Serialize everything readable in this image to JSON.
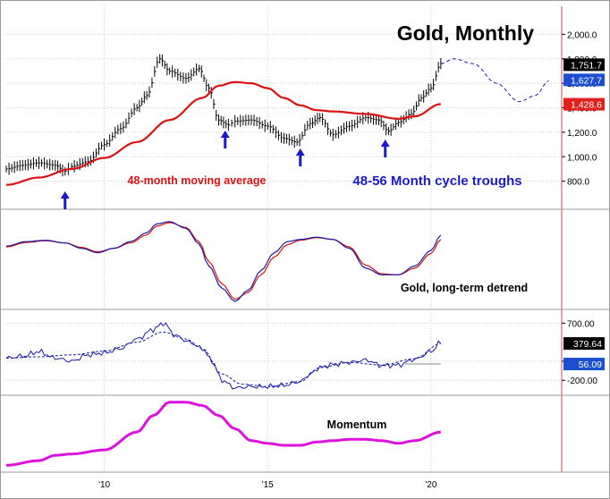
{
  "chart_data": [
    {
      "panel": "price",
      "type": "line",
      "title": "Gold, Monthly",
      "y_scale": "linear",
      "ylim": [
        600,
        2200
      ],
      "y_ticks": [
        800,
        1000,
        1200,
        1400,
        1600,
        1800,
        2000
      ],
      "y_tick_labels": [
        "800.0",
        "1,000.0",
        "1,200.0",
        "1,400.0",
        "1,600.0",
        "1,800.0",
        "2,000.0"
      ],
      "xlim": [
        2007.0,
        2024.0
      ],
      "x_ticks": [
        2010,
        2015,
        2020
      ],
      "x_tick_labels": [
        "'10",
        "'15",
        "'20"
      ],
      "series": [
        {
          "name": "",
          "style": "bars",
          "color": "#000000",
          "x": [
            2007.0,
            2007.5,
            2008.0,
            2008.5,
            2008.8,
            2009.0,
            2009.5,
            2010.0,
            2010.5,
            2011.0,
            2011.3,
            2011.7,
            2012.0,
            2012.5,
            2012.9,
            2013.2,
            2013.5,
            2013.8,
            2014.0,
            2014.5,
            2015.0,
            2015.5,
            2015.9,
            2016.3,
            2016.6,
            2017.0,
            2017.5,
            2018.0,
            2018.4,
            2018.7,
            2019.0,
            2019.4,
            2019.7,
            2020.0,
            2020.3
          ],
          "y": [
            900,
            930,
            950,
            930,
            880,
            920,
            960,
            1100,
            1230,
            1400,
            1500,
            1800,
            1700,
            1640,
            1720,
            1560,
            1300,
            1260,
            1290,
            1300,
            1250,
            1150,
            1120,
            1270,
            1320,
            1180,
            1250,
            1320,
            1300,
            1210,
            1280,
            1350,
            1480,
            1560,
            1760
          ]
        },
        {
          "name": "48-month moving average",
          "style": "line",
          "color": "#dd1111",
          "x": [
            2007.0,
            2008.0,
            2009.0,
            2010.0,
            2011.0,
            2012.0,
            2013.0,
            2013.5,
            2014.0,
            2014.5,
            2015.0,
            2015.5,
            2016.0,
            2016.5,
            2017.0,
            2018.0,
            2019.0,
            2019.5,
            2020.3
          ],
          "y": [
            770,
            830,
            900,
            990,
            1120,
            1300,
            1480,
            1580,
            1610,
            1600,
            1560,
            1480,
            1420,
            1380,
            1370,
            1350,
            1310,
            1330,
            1430
          ]
        },
        {
          "name": "",
          "style": "dashed",
          "color": "#1a1aa8",
          "x": [
            2020.3,
            2020.7,
            2021.3,
            2022.0,
            2022.7,
            2023.2,
            2023.6
          ],
          "y": [
            1760,
            1800,
            1760,
            1600,
            1450,
            1500,
            1620
          ]
        }
      ],
      "value_labels": [
        {
          "text": "1,751.7",
          "value": 1751.7,
          "color": "#000000"
        },
        {
          "text": "1,627.7",
          "value": 1627.7,
          "color": "#1c4fcf"
        },
        {
          "text": "1,428.6",
          "value": 1428.6,
          "color": "#e0201a"
        }
      ],
      "annotations": [
        {
          "text": "48-month moving average",
          "color": "#dd1111"
        },
        {
          "text": "48-56 Month cycle troughs",
          "color": "#1a1acc"
        }
      ],
      "arrows": [
        2008.8,
        2013.7,
        2016.0,
        2018.6
      ]
    },
    {
      "panel": "detrend",
      "type": "line",
      "title": "Gold, long-term detrend",
      "ylim": [
        -1.3,
        0.8
      ],
      "series": [
        {
          "name": "",
          "color": "#1a1aa8",
          "x": [
            2007.0,
            2007.6,
            2008.2,
            2008.8,
            2009.3,
            2009.8,
            2010.3,
            2010.8,
            2011.3,
            2011.6,
            2012.0,
            2012.5,
            2012.9,
            2013.2,
            2013.6,
            2014.0,
            2014.4,
            2014.8,
            2015.2,
            2015.6,
            2016.0,
            2016.5,
            2017.0,
            2017.5,
            2018.0,
            2018.5,
            2019.0,
            2019.5,
            2020.0,
            2020.3
          ],
          "y": [
            0.05,
            0.15,
            0.18,
            0.12,
            0.0,
            -0.1,
            0.0,
            0.15,
            0.35,
            0.55,
            0.6,
            0.45,
            0.1,
            -0.4,
            -0.9,
            -1.2,
            -0.95,
            -0.5,
            -0.1,
            0.15,
            0.2,
            0.25,
            0.2,
            0.0,
            -0.45,
            -0.6,
            -0.6,
            -0.4,
            -0.05,
            0.3
          ]
        },
        {
          "name": "",
          "color": "#dd1111",
          "x": [
            2007.0,
            2007.6,
            2008.2,
            2008.8,
            2009.3,
            2009.8,
            2010.3,
            2010.8,
            2011.3,
            2011.6,
            2012.0,
            2012.5,
            2012.9,
            2013.2,
            2013.6,
            2014.0,
            2014.4,
            2014.8,
            2015.2,
            2015.6,
            2016.0,
            2016.5,
            2017.0,
            2017.5,
            2018.0,
            2018.5,
            2019.0,
            2019.5,
            2020.0,
            2020.3
          ],
          "y": [
            0.03,
            0.13,
            0.17,
            0.12,
            0.02,
            -0.08,
            0.0,
            0.12,
            0.3,
            0.5,
            0.58,
            0.47,
            0.15,
            -0.3,
            -0.8,
            -1.15,
            -1.0,
            -0.6,
            -0.2,
            0.08,
            0.18,
            0.24,
            0.2,
            0.03,
            -0.38,
            -0.58,
            -0.6,
            -0.45,
            -0.12,
            0.2
          ]
        }
      ]
    },
    {
      "panel": "oscillator",
      "type": "line",
      "ylim": [
        -380,
        860
      ],
      "y_ticks": [
        700,
        100,
        -200
      ],
      "y_tick_labels": [
        "700.00",
        "100.00",
        "-200.00"
      ],
      "series": [
        {
          "name": "",
          "color": "#1a1aa8",
          "x": [
            2007.0,
            2007.5,
            2008.0,
            2008.5,
            2009.0,
            2009.5,
            2010.0,
            2010.5,
            2011.0,
            2011.5,
            2011.8,
            2012.2,
            2012.6,
            2013.0,
            2013.3,
            2013.6,
            2014.0,
            2014.5,
            2015.0,
            2015.5,
            2016.0,
            2016.3,
            2016.6,
            2017.0,
            2017.5,
            2018.0,
            2018.5,
            2019.0,
            2019.5,
            2020.0,
            2020.3
          ],
          "y": [
            150,
            180,
            250,
            150,
            100,
            200,
            230,
            300,
            450,
            600,
            700,
            500,
            400,
            300,
            100,
            -200,
            -320,
            -300,
            -300,
            -280,
            -220,
            -100,
            0,
            50,
            80,
            120,
            30,
            40,
            130,
            250,
            400
          ]
        },
        {
          "name": "",
          "color": "#1a1aa8",
          "style": "dashed",
          "x": [
            2007.0,
            2008.0,
            2009.0,
            2010.0,
            2011.0,
            2011.8,
            2012.5,
            2013.0,
            2013.6,
            2014.2,
            2015.0,
            2016.0,
            2016.6,
            2017.5,
            2018.5,
            2019.5,
            2020.3
          ],
          "y": [
            150,
            170,
            200,
            260,
            400,
            560,
            450,
            300,
            -100,
            -260,
            -300,
            -220,
            0,
            80,
            40,
            140,
            380
          ]
        }
      ],
      "value_labels": [
        {
          "text": "379.64",
          "value": 379.64,
          "color": "#000000"
        },
        {
          "text": "56.09",
          "value": 56.09,
          "color": "#1c4fcf"
        }
      ]
    },
    {
      "panel": "momentum",
      "type": "line",
      "title": "Momentum",
      "ylim": [
        0,
        1.05
      ],
      "series": [
        {
          "name": "",
          "color": "#dd11dd",
          "x": [
            2007.0,
            2008.0,
            2008.5,
            2009.0,
            2010.0,
            2011.0,
            2011.5,
            2012.0,
            2012.5,
            2013.0,
            2013.5,
            2014.0,
            2014.5,
            2015.0,
            2015.5,
            2016.0,
            2016.5,
            2017.0,
            2017.5,
            2018.0,
            2018.5,
            2019.0,
            2019.5,
            2020.3
          ],
          "y": [
            0.05,
            0.12,
            0.2,
            0.22,
            0.28,
            0.55,
            0.8,
            1.0,
            1.0,
            0.95,
            0.8,
            0.6,
            0.42,
            0.38,
            0.35,
            0.35,
            0.4,
            0.42,
            0.44,
            0.44,
            0.42,
            0.38,
            0.42,
            0.55
          ]
        }
      ]
    }
  ]
}
